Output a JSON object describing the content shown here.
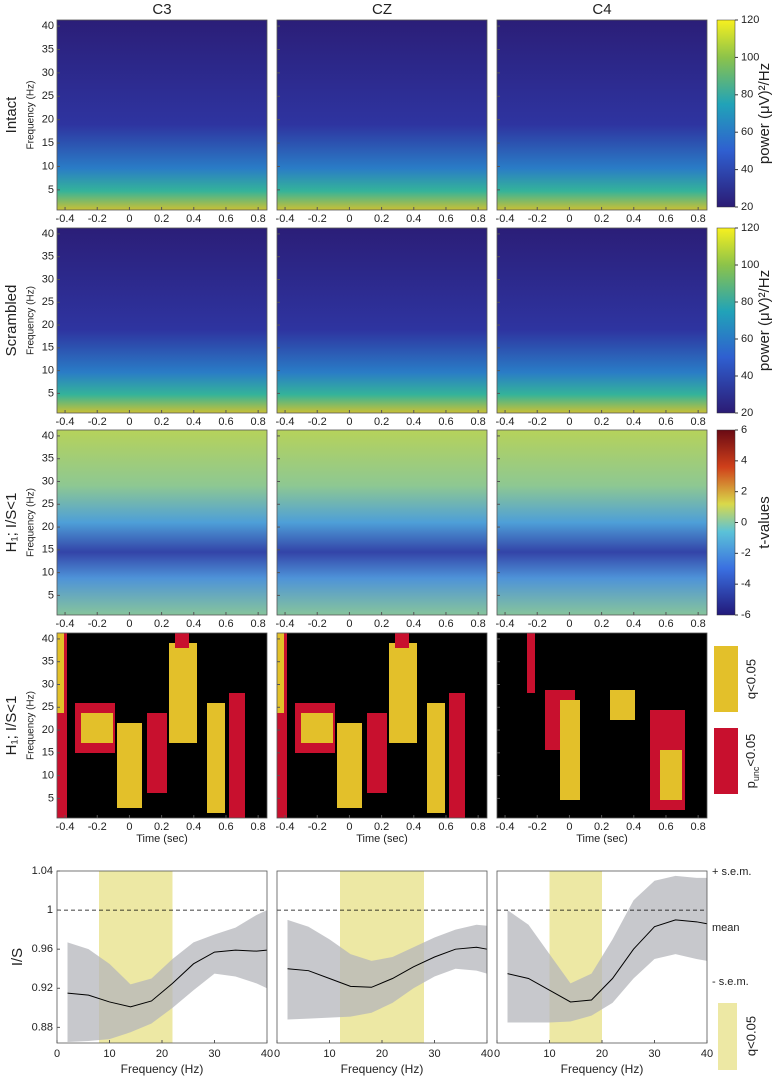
{
  "columns": [
    "C3",
    "CZ",
    "C4"
  ],
  "rows": [
    {
      "label": "Intact"
    },
    {
      "label": "Scrambled"
    },
    {
      "label": "H₁; I/S<1"
    },
    {
      "label": "H₁; I/S<1"
    }
  ],
  "heatmaps": {
    "xlim": [
      -0.45,
      0.855
    ],
    "xticks": [
      -0.4,
      -0.2,
      0,
      0.2,
      0.4,
      0.6,
      0.8
    ],
    "ylim": [
      0.7,
      41.3
    ],
    "yticks": [
      5,
      10,
      15,
      20,
      25,
      30,
      35,
      40
    ],
    "ylabel": "Frequency (Hz)",
    "xlabel": "Time (sec)"
  },
  "colorbars": {
    "power": {
      "label": "power (μV)²/Hz",
      "ylim": [
        20,
        120
      ],
      "yticks": [
        20,
        40,
        60,
        80,
        100,
        120
      ]
    },
    "t": {
      "label": "t-values",
      "ylim": [
        -6,
        6
      ],
      "yticks": [
        -6,
        -4,
        -2,
        0,
        2,
        4,
        6
      ]
    }
  },
  "significance_legend": {
    "q": "q<0.05",
    "p": [
      "p",
      "unc",
      "<0.05"
    ]
  },
  "chart_data": [
    {
      "type": "line",
      "ylabel": "I/S",
      "xlabel": "Frequency (Hz)",
      "xlim": [
        0,
        40
      ],
      "xticks": [
        0,
        10,
        20,
        30,
        40
      ],
      "ylim": [
        0.864,
        1.04
      ],
      "yticks": [
        0.88,
        0.92,
        0.96,
        1,
        1.04
      ],
      "refline": 1,
      "shade": [
        8,
        22
      ],
      "band_color": "#b4b6bb",
      "x": [
        2,
        6,
        10,
        14,
        18,
        22,
        26,
        30,
        34,
        38,
        40
      ],
      "series": [
        {
          "values": [
            0.967,
            0.96,
            0.945,
            0.924,
            0.93,
            0.95,
            0.967,
            0.975,
            0.982,
            0.995,
            1.0
          ]
        },
        {
          "values": [
            0.915,
            0.913,
            0.906,
            0.901,
            0.907,
            0.925,
            0.945,
            0.957,
            0.959,
            0.958,
            0.959
          ]
        },
        {
          "values": [
            0.865,
            0.866,
            0.868,
            0.875,
            0.884,
            0.9,
            0.918,
            0.935,
            0.932,
            0.925,
            0.92
          ]
        }
      ]
    },
    {
      "type": "line",
      "xlabel": "Frequency (Hz)",
      "xlim": [
        0,
        40
      ],
      "xticks": [
        0,
        10,
        20,
        30,
        40
      ],
      "ylim": [
        0.864,
        1.04
      ],
      "refline": 1,
      "shade": [
        12,
        28
      ],
      "band_color": "#b4b6bb",
      "x": [
        2,
        6,
        10,
        14,
        18,
        22,
        26,
        30,
        34,
        38,
        40
      ],
      "series": [
        {
          "values": [
            0.99,
            0.983,
            0.97,
            0.955,
            0.948,
            0.952,
            0.962,
            0.972,
            0.98,
            0.985,
            0.984
          ]
        },
        {
          "values": [
            0.94,
            0.938,
            0.93,
            0.922,
            0.921,
            0.93,
            0.942,
            0.952,
            0.96,
            0.962,
            0.96
          ]
        },
        {
          "values": [
            0.888,
            0.889,
            0.89,
            0.891,
            0.895,
            0.905,
            0.92,
            0.932,
            0.94,
            0.938,
            0.935
          ]
        }
      ]
    },
    {
      "type": "line",
      "xlabel": "Frequency (Hz)",
      "xlim": [
        0,
        40
      ],
      "xticks": [
        0,
        10,
        20,
        30,
        40
      ],
      "ylim": [
        0.864,
        1.04
      ],
      "refline": 1,
      "shade": [
        10,
        20
      ],
      "band_color": "#b4b6bb",
      "shade_label": "q<0.05",
      "x": [
        2,
        6,
        10,
        14,
        18,
        22,
        26,
        30,
        34,
        38,
        40
      ],
      "series": [
        {
          "name": "+ s.e.m.",
          "values": [
            1.0,
            0.985,
            0.955,
            0.925,
            0.935,
            0.97,
            1.01,
            1.03,
            1.035,
            1.033,
            1.033
          ]
        },
        {
          "name": "mean",
          "values": [
            0.935,
            0.93,
            0.918,
            0.906,
            0.908,
            0.93,
            0.96,
            0.983,
            0.99,
            0.988,
            0.986
          ]
        },
        {
          "name": "- s.e.m.",
          "values": [
            0.885,
            0.885,
            0.885,
            0.886,
            0.892,
            0.905,
            0.93,
            0.95,
            0.955,
            0.95,
            0.948
          ]
        }
      ]
    }
  ]
}
